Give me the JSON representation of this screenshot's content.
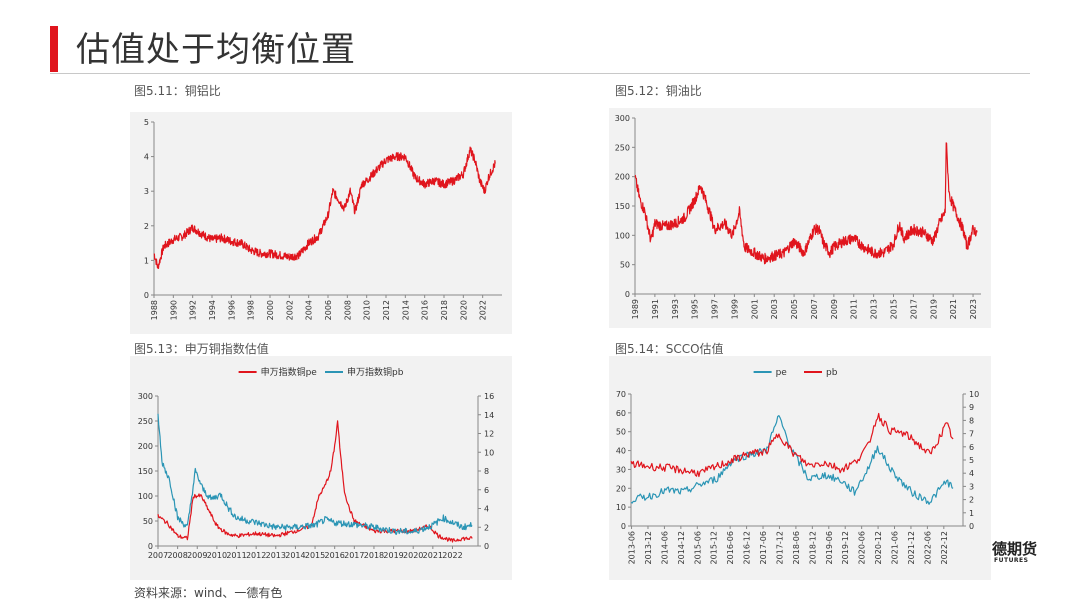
{
  "page": {
    "title": "估值处于均衡位置",
    "source": "资料来源：wind、一德有色",
    "logo_text": "德期货",
    "logo_en": "FUTURES"
  },
  "colors": {
    "red": "#e0151d",
    "blue": "#2b95b5",
    "panel_bg": "#f2f2f2"
  },
  "chart_data": [
    {
      "id": "c1",
      "type": "line",
      "label": "图5.11：铜铝比",
      "ylim": [
        0,
        5
      ],
      "yticks": [
        0,
        1,
        2,
        3,
        4,
        5
      ],
      "xlim": [
        1988,
        2024
      ],
      "xticks": [
        "1988",
        "1990",
        "1992",
        "1994",
        "1996",
        "1998",
        "2000",
        "2002",
        "2004",
        "2006",
        "2008",
        "2010",
        "2012",
        "2014",
        "2016",
        "2018",
        "2020",
        "2022"
      ],
      "series": [
        {
          "color": "#e0151d",
          "noise": 0.12,
          "x": [
            1988,
            1988.4,
            1989,
            1990,
            1991,
            1992,
            1993,
            1994,
            1995,
            1996,
            1997,
            1998,
            1999,
            2000,
            2001,
            2002,
            2003,
            2004,
            2005,
            2006,
            2006.5,
            2007,
            2007.7,
            2008.3,
            2008.8,
            2009.5,
            2010,
            2011,
            2012,
            2013,
            2014,
            2015,
            2016,
            2017,
            2018,
            2019,
            2020,
            2020.7,
            2021.2,
            2021.7,
            2022.2,
            2022.6,
            2023.3
          ],
          "y": [
            1.2,
            0.8,
            1.4,
            1.6,
            1.7,
            1.95,
            1.75,
            1.6,
            1.65,
            1.55,
            1.5,
            1.3,
            1.2,
            1.2,
            1.15,
            1.1,
            1.15,
            1.5,
            1.7,
            2.3,
            3.0,
            2.8,
            2.5,
            3.0,
            2.4,
            3.2,
            3.3,
            3.6,
            3.9,
            4.0,
            4.0,
            3.4,
            3.2,
            3.3,
            3.2,
            3.3,
            3.5,
            4.2,
            3.9,
            3.3,
            3.0,
            3.4,
            3.8
          ]
        }
      ]
    },
    {
      "id": "c2",
      "type": "line",
      "label": "图5.12：铜油比",
      "ylim": [
        0,
        300
      ],
      "yticks": [
        0,
        50,
        100,
        150,
        200,
        250,
        300
      ],
      "xlim": [
        1989,
        2023.8
      ],
      "xticks": [
        "1989",
        "1991",
        "1993",
        "1995",
        "1997",
        "1999",
        "2001",
        "2003",
        "2005",
        "2007",
        "2009",
        "2011",
        "2013",
        "2015",
        "2017",
        "2019",
        "2021",
        "2023"
      ],
      "series": [
        {
          "color": "#e0151d",
          "noise": 9,
          "x": [
            1989,
            1989.5,
            1990,
            1990.6,
            1991,
            1992,
            1993,
            1994,
            1995,
            1995.6,
            1996.5,
            1997,
            1998,
            1998.8,
            1999.5,
            2000,
            2001,
            2002,
            2003,
            2004,
            2005,
            2006,
            2007,
            2007.5,
            2008,
            2008.6,
            2009,
            2010,
            2011,
            2012,
            2013,
            2014,
            2015,
            2015.6,
            2016,
            2017,
            2018,
            2019,
            2019.6,
            2020.2,
            2020.3,
            2020.6,
            2021,
            2021.5,
            2022,
            2022.4,
            2023,
            2023.4
          ],
          "y": [
            200,
            160,
            140,
            90,
            120,
            115,
            120,
            130,
            160,
            185,
            140,
            110,
            120,
            100,
            140,
            80,
            70,
            60,
            65,
            70,
            90,
            70,
            110,
            110,
            85,
            70,
            80,
            90,
            95,
            80,
            70,
            70,
            85,
            120,
            95,
            110,
            105,
            90,
            120,
            140,
            260,
            170,
            150,
            130,
            110,
            80,
            110,
            105
          ]
        }
      ]
    },
    {
      "id": "c3",
      "type": "line",
      "label": "图5.13：申万铜指数估值",
      "ylim": [
        0,
        300
      ],
      "yticks": [
        0,
        50,
        100,
        150,
        200,
        250,
        300
      ],
      "y2lim": [
        0,
        16
      ],
      "y2ticks": [
        0,
        2,
        4,
        6,
        8,
        10,
        12,
        14,
        16
      ],
      "xlim": [
        2007,
        2023.3
      ],
      "xticks": [
        "2007",
        "2008",
        "2009",
        "2010",
        "2011",
        "2012",
        "2013",
        "2014",
        "2015",
        "2016",
        "2017",
        "2018",
        "2019",
        "2020",
        "2021",
        "2022"
      ],
      "legend": "top",
      "series": [
        {
          "name": "申万指数铜pe",
          "color": "#e0151d",
          "axis": "left",
          "noise": 4,
          "x": [
            2007,
            2007.5,
            2008,
            2008.5,
            2008.8,
            2009.2,
            2009.6,
            2010,
            2010.5,
            2011,
            2012,
            2013,
            2014,
            2014.8,
            2015.2,
            2015.5,
            2015.8,
            2016,
            2016.15,
            2016.3,
            2016.5,
            2016.7,
            2017,
            2017.5,
            2018,
            2019,
            2020,
            2020.8,
            2021.3,
            2022,
            2022.5,
            2023
          ],
          "y": [
            60,
            45,
            20,
            15,
            100,
            100,
            70,
            40,
            25,
            20,
            25,
            20,
            30,
            40,
            100,
            120,
            150,
            200,
            250,
            180,
            110,
            80,
            50,
            40,
            30,
            30,
            30,
            40,
            20,
            10,
            15,
            15
          ]
        },
        {
          "name": "申万指数铜pb",
          "color": "#2b95b5",
          "axis": "right",
          "noise": 0.35,
          "x": [
            2007,
            2007.2,
            2007.6,
            2008,
            2008.5,
            2008.9,
            2009.3,
            2009.7,
            2010.2,
            2010.6,
            2011,
            2012,
            2013,
            2014,
            2015,
            2015.5,
            2016,
            2017,
            2018,
            2019,
            2020,
            2021,
            2021.5,
            2022,
            2022.5,
            2023
          ],
          "y": [
            14,
            9,
            7,
            3,
            2,
            8,
            6,
            5,
            5.5,
            4,
            3,
            2.5,
            2,
            2,
            2.2,
            2.8,
            2.5,
            2.3,
            2,
            1.6,
            1.5,
            2.2,
            3,
            2.5,
            2,
            2.2
          ]
        }
      ]
    },
    {
      "id": "c4",
      "type": "line",
      "label": "图5.14：SCCO估值",
      "ylim": [
        0,
        70
      ],
      "yticks": [
        0,
        10,
        20,
        30,
        40,
        50,
        60,
        70
      ],
      "y2lim": [
        0,
        10
      ],
      "y2ticks": [
        0,
        1,
        2,
        3,
        4,
        5,
        6,
        7,
        8,
        9,
        10
      ],
      "xlim": [
        2013.4,
        2023.5
      ],
      "xticks": [
        "2013-06",
        "2013-12",
        "2014-06",
        "2014-12",
        "2015-06",
        "2015-12",
        "2016-06",
        "2016-12",
        "2017-06",
        "2017-12",
        "2018-06",
        "2018-12",
        "2019-06",
        "2019-12",
        "2020-06",
        "2020-12",
        "2021-06",
        "2021-12",
        "2022-06",
        "2022-12"
      ],
      "legend": "top",
      "series": [
        {
          "name": "pe",
          "color": "#2b95b5",
          "axis": "left",
          "noise": 2,
          "x": [
            2013.4,
            2014,
            2014.5,
            2015,
            2015.5,
            2016,
            2016.5,
            2017,
            2017.5,
            2017.9,
            2018.3,
            2018.8,
            2019.3,
            2019.8,
            2020.2,
            2020.6,
            2020.9,
            2021.3,
            2021.7,
            2022,
            2022.5,
            2023,
            2023.2
          ],
          "y": [
            14,
            16,
            19,
            18,
            22,
            25,
            35,
            38,
            40,
            58,
            40,
            25,
            27,
            24,
            18,
            30,
            42,
            30,
            22,
            17,
            13,
            24,
            20
          ]
        },
        {
          "name": "pb",
          "color": "#e0151d",
          "axis": "right",
          "noise": 0.3,
          "x": [
            2013.4,
            2014,
            2014.5,
            2015,
            2015.5,
            2016,
            2016.5,
            2017,
            2017.5,
            2017.9,
            2018.3,
            2018.8,
            2019.3,
            2019.8,
            2020.2,
            2020.6,
            2020.9,
            2021.3,
            2021.7,
            2022,
            2022.5,
            2023,
            2023.2
          ],
          "y": [
            4.7,
            4.5,
            4.4,
            4.2,
            4,
            4.5,
            5,
            5.5,
            5.6,
            7,
            5.6,
            4.6,
            4.8,
            4.3,
            4.8,
            6,
            8.4,
            7.2,
            7,
            6.5,
            5.4,
            7.7,
            6.6
          ]
        }
      ]
    }
  ]
}
